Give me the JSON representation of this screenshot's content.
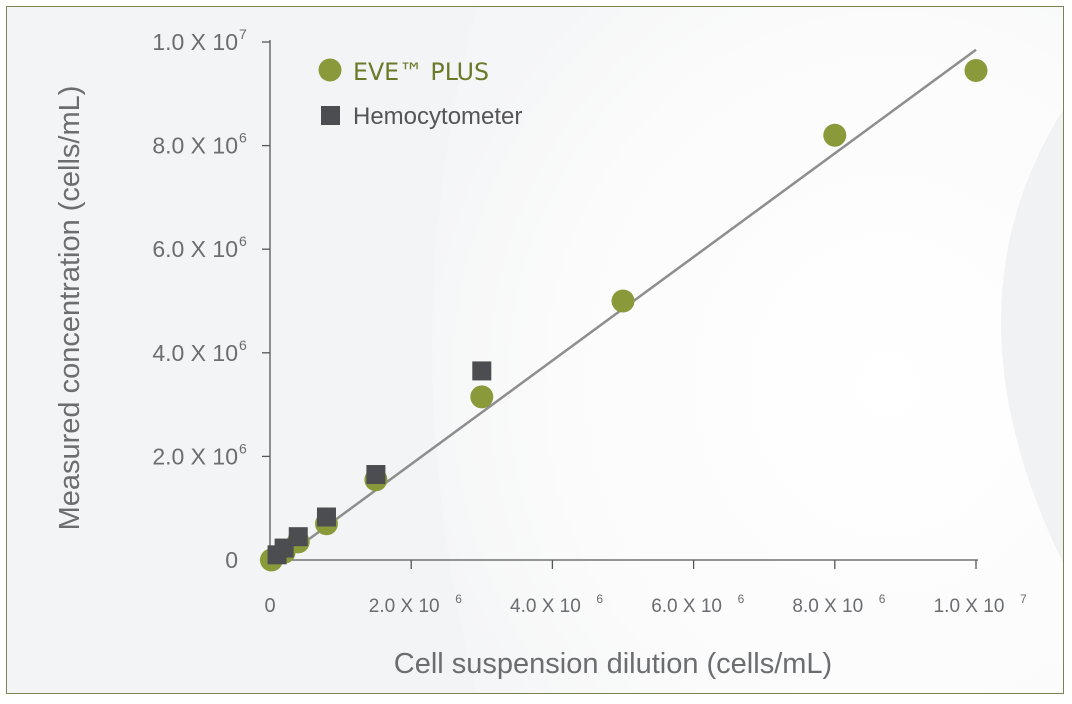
{
  "chart_data": {
    "type": "scatter",
    "xlabel": "Cell suspension dilution (cells/mL)",
    "ylabel": "Measured concentration (cells/mL)",
    "xlim": [
      0,
      10000000
    ],
    "ylim": [
      0,
      10000000
    ],
    "x_ticks": [
      {
        "value": 0,
        "label": "0",
        "exp": ""
      },
      {
        "value": 2000000,
        "label": "2.0 X 10",
        "exp": "6"
      },
      {
        "value": 4000000,
        "label": "4.0 X 10",
        "exp": "6"
      },
      {
        "value": 6000000,
        "label": "6.0 X 10",
        "exp": "6"
      },
      {
        "value": 8000000,
        "label": "8.0 X 10",
        "exp": "6"
      },
      {
        "value": 10000000,
        "label": "1.0 X 10",
        "exp": "7"
      }
    ],
    "y_ticks": [
      {
        "value": 0,
        "label": "0",
        "exp": ""
      },
      {
        "value": 2000000,
        "label": "2.0 X 10",
        "exp": "6"
      },
      {
        "value": 4000000,
        "label": "4.0 X 10",
        "exp": "6"
      },
      {
        "value": 6000000,
        "label": "6.0 X 10",
        "exp": "6"
      },
      {
        "value": 8000000,
        "label": "8.0 X 10",
        "exp": "6"
      },
      {
        "value": 10000000,
        "label": "1.0 X 10",
        "exp": "7"
      }
    ],
    "grid": false,
    "legend_position": "top-left",
    "series": [
      {
        "name": "EVE™ PLUS",
        "marker": "circle",
        "color": "#8a9a3b",
        "label_color": "#6b7a2a",
        "points": [
          [
            20000,
            0
          ],
          [
            200000,
            150000
          ],
          [
            400000,
            350000
          ],
          [
            800000,
            700000
          ],
          [
            1500000,
            1550000
          ],
          [
            3000000,
            3150000
          ],
          [
            5000000,
            5000000
          ],
          [
            8000000,
            8200000
          ],
          [
            10000000,
            9450000
          ]
        ]
      },
      {
        "name": "Hemocytometer",
        "marker": "square",
        "color": "#4b4d50",
        "label_color": "#555555",
        "points": [
          [
            100000,
            100000
          ],
          [
            200000,
            230000
          ],
          [
            400000,
            450000
          ],
          [
            800000,
            830000
          ],
          [
            1500000,
            1650000
          ],
          [
            3000000,
            3650000
          ]
        ]
      }
    ],
    "trendline": {
      "color": "#8e8e8e",
      "from": [
        0,
        -150000
      ],
      "to": [
        10000000,
        9850000
      ]
    }
  }
}
